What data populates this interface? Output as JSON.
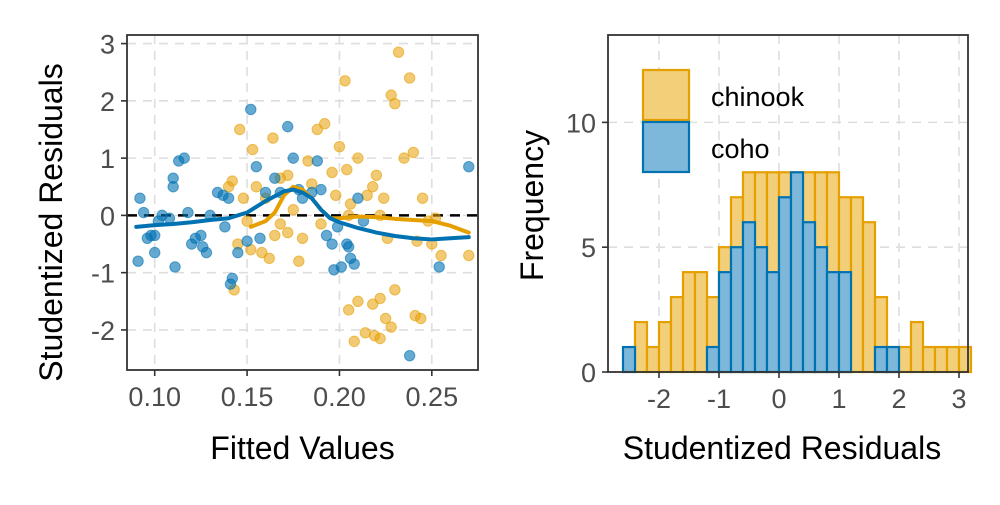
{
  "colors": {
    "chinook": "#E69F00",
    "chinook_fill": "#F3CF7A",
    "coho": "#0072B2",
    "coho_fill": "#7DB8DB",
    "grid": "#dedede",
    "frame": "#333333"
  },
  "chart_data": [
    {
      "type": "scatter",
      "xlabel": "Fitted Values",
      "ylabel": "Studentized Residuals",
      "xlim": [
        0.085,
        0.275
      ],
      "ylim": [
        -2.7,
        3.15
      ],
      "xticks": [
        0.1,
        0.15,
        0.2,
        0.25
      ],
      "xtick_labels": [
        "0.10",
        "0.15",
        "0.20",
        "0.25"
      ],
      "yticks": [
        -2,
        -1,
        0,
        1,
        2,
        3
      ],
      "ytick_labels": [
        "-2",
        "-1",
        "0",
        "1",
        "2",
        "3"
      ],
      "grid": true,
      "reference_line": {
        "y": 0,
        "style": "dashed"
      },
      "series": [
        {
          "name": "chinook",
          "color_key": "chinook",
          "points": [
            [
              0.146,
              1.5
            ],
            [
              0.153,
              1.15
            ],
            [
              0.164,
              1.35
            ],
            [
              0.168,
              0.65
            ],
            [
              0.172,
              0.7
            ],
            [
              0.142,
              0.6
            ],
            [
              0.14,
              0.5
            ],
            [
              0.155,
              0.5
            ],
            [
              0.16,
              0.3
            ],
            [
              0.148,
              0.3
            ],
            [
              0.15,
              -0.1
            ],
            [
              0.145,
              -0.5
            ],
            [
              0.152,
              -0.6
            ],
            [
              0.158,
              -0.65
            ],
            [
              0.165,
              -0.35
            ],
            [
              0.172,
              -0.3
            ],
            [
              0.18,
              -0.4
            ],
            [
              0.19,
              -0.15
            ],
            [
              0.183,
              0.95
            ],
            [
              0.188,
              1.5
            ],
            [
              0.192,
              1.6
            ],
            [
              0.2,
              1.2
            ],
            [
              0.196,
              0.75
            ],
            [
              0.204,
              0.8
            ],
            [
              0.205,
              0.0
            ],
            [
              0.21,
              1.0
            ],
            [
              0.203,
              2.35
            ],
            [
              0.215,
              0.35
            ],
            [
              0.218,
              0.5
            ],
            [
              0.22,
              0.7
            ],
            [
              0.224,
              0.3
            ],
            [
              0.222,
              0.0
            ],
            [
              0.226,
              -0.4
            ],
            [
              0.228,
              2.1
            ],
            [
              0.23,
              1.95
            ],
            [
              0.232,
              2.85
            ],
            [
              0.235,
              1.0
            ],
            [
              0.238,
              2.4
            ],
            [
              0.24,
              1.1
            ],
            [
              0.242,
              -0.45
            ],
            [
              0.245,
              0.3
            ],
            [
              0.248,
              -0.1
            ],
            [
              0.25,
              -0.5
            ],
            [
              0.252,
              -0.05
            ],
            [
              0.222,
              -1.45
            ],
            [
              0.218,
              -1.55
            ],
            [
              0.225,
              -1.8
            ],
            [
              0.214,
              -2.05
            ],
            [
              0.21,
              -1.5
            ],
            [
              0.219,
              -2.1
            ],
            [
              0.205,
              -1.65
            ],
            [
              0.208,
              -2.2
            ],
            [
              0.222,
              -2.15
            ],
            [
              0.23,
              -1.3
            ],
            [
              0.228,
              -1.95
            ],
            [
              0.241,
              -1.75
            ],
            [
              0.244,
              -1.8
            ],
            [
              0.143,
              -1.3
            ],
            [
              0.27,
              -0.7
            ],
            [
              0.255,
              -0.7
            ],
            [
              0.198,
              0.35
            ],
            [
              0.206,
              0.2
            ],
            [
              0.175,
              0.1
            ],
            [
              0.185,
              0.55
            ],
            [
              0.178,
              -0.8
            ],
            [
              0.168,
              -0.15
            ],
            [
              0.162,
              -0.75
            ]
          ]
        },
        {
          "name": "coho",
          "color_key": "coho",
          "points": [
            [
              0.092,
              0.3
            ],
            [
              0.094,
              0.05
            ],
            [
              0.096,
              -0.4
            ],
            [
              0.098,
              -0.35
            ],
            [
              0.1,
              -0.35
            ],
            [
              0.102,
              -0.1
            ],
            [
              0.104,
              0.0
            ],
            [
              0.108,
              -0.05
            ],
            [
              0.11,
              0.5
            ],
            [
              0.11,
              0.65
            ],
            [
              0.113,
              0.95
            ],
            [
              0.116,
              1.0
            ],
            [
              0.118,
              0.05
            ],
            [
              0.12,
              -0.5
            ],
            [
              0.122,
              -0.4
            ],
            [
              0.125,
              -0.35
            ],
            [
              0.126,
              -0.55
            ],
            [
              0.128,
              -0.65
            ],
            [
              0.13,
              0.0
            ],
            [
              0.134,
              0.4
            ],
            [
              0.137,
              0.35
            ],
            [
              0.14,
              0.3
            ],
            [
              0.142,
              -1.1
            ],
            [
              0.141,
              -1.2
            ],
            [
              0.138,
              -0.2
            ],
            [
              0.145,
              -0.65
            ],
            [
              0.15,
              -0.45
            ],
            [
              0.152,
              1.85
            ],
            [
              0.155,
              0.85
            ],
            [
              0.157,
              -0.4
            ],
            [
              0.16,
              0.4
            ],
            [
              0.165,
              0.65
            ],
            [
              0.168,
              0.4
            ],
            [
              0.172,
              1.55
            ],
            [
              0.175,
              1.0
            ],
            [
              0.178,
              0.45
            ],
            [
              0.18,
              0.3
            ],
            [
              0.185,
              0.4
            ],
            [
              0.19,
              0.45
            ],
            [
              0.193,
              -0.35
            ],
            [
              0.196,
              -0.5
            ],
            [
              0.197,
              -0.95
            ],
            [
              0.199,
              -0.2
            ],
            [
              0.201,
              -0.9
            ],
            [
              0.204,
              -0.5
            ],
            [
              0.205,
              -0.55
            ],
            [
              0.208,
              -0.85
            ],
            [
              0.21,
              0.3
            ],
            [
              0.213,
              -0.1
            ],
            [
              0.238,
              -2.45
            ],
            [
              0.254,
              -0.9
            ],
            [
              0.27,
              0.85
            ],
            [
              0.1,
              -0.65
            ],
            [
              0.091,
              -0.8
            ],
            [
              0.111,
              -0.9
            ],
            [
              0.188,
              0.95
            ],
            [
              0.206,
              -0.75
            ]
          ]
        }
      ],
      "smooth_lines": [
        {
          "name": "chinook",
          "color_key": "chinook",
          "points": [
            [
              0.152,
              -0.2
            ],
            [
              0.16,
              -0.1
            ],
            [
              0.165,
              0.05
            ],
            [
              0.17,
              0.35
            ],
            [
              0.175,
              0.5
            ],
            [
              0.18,
              0.45
            ],
            [
              0.185,
              0.3
            ],
            [
              0.19,
              0.1
            ],
            [
              0.195,
              -0.05
            ],
            [
              0.2,
              -0.05
            ],
            [
              0.21,
              -0.02
            ],
            [
              0.22,
              -0.03
            ],
            [
              0.23,
              -0.06
            ],
            [
              0.24,
              -0.08
            ],
            [
              0.25,
              -0.1
            ],
            [
              0.26,
              -0.18
            ],
            [
              0.27,
              -0.3
            ]
          ]
        },
        {
          "name": "coho",
          "color_key": "coho",
          "points": [
            [
              0.09,
              -0.2
            ],
            [
              0.1,
              -0.17
            ],
            [
              0.11,
              -0.15
            ],
            [
              0.12,
              -0.12
            ],
            [
              0.13,
              -0.08
            ],
            [
              0.14,
              -0.05
            ],
            [
              0.15,
              0.05
            ],
            [
              0.16,
              0.25
            ],
            [
              0.17,
              0.42
            ],
            [
              0.175,
              0.45
            ],
            [
              0.18,
              0.4
            ],
            [
              0.185,
              0.3
            ],
            [
              0.19,
              0.1
            ],
            [
              0.195,
              -0.05
            ],
            [
              0.2,
              -0.12
            ],
            [
              0.21,
              -0.22
            ],
            [
              0.22,
              -0.3
            ],
            [
              0.23,
              -0.36
            ],
            [
              0.24,
              -0.4
            ],
            [
              0.25,
              -0.42
            ],
            [
              0.26,
              -0.4
            ],
            [
              0.27,
              -0.38
            ]
          ]
        }
      ]
    },
    {
      "type": "histogram",
      "xlabel": "Studentized Residuals",
      "ylabel": "Frequency",
      "xlim": [
        -2.85,
        3.15
      ],
      "ylim": [
        0,
        13.5
      ],
      "xticks": [
        -2,
        -1,
        0,
        1,
        2,
        3
      ],
      "xtick_labels": [
        "-2",
        "-1",
        "0",
        "1",
        "2",
        "3"
      ],
      "yticks": [
        0,
        5,
        10
      ],
      "ytick_labels": [
        "0",
        "5",
        "10"
      ],
      "grid": true,
      "legend": {
        "position": "top-left"
      },
      "bin_width": 0.2,
      "bin_start": -2.6,
      "series": [
        {
          "name": "chinook",
          "color_key": "chinook",
          "fill_key": "chinook_fill",
          "values": [
            0,
            2,
            1,
            2,
            3,
            4,
            4,
            3,
            5,
            7,
            8,
            8,
            8,
            8,
            8,
            8,
            8,
            8,
            7,
            7,
            6,
            3,
            1,
            1,
            2,
            1,
            1,
            1,
            1
          ]
        },
        {
          "name": "coho",
          "color_key": "coho",
          "fill_key": "coho_fill",
          "values": [
            1,
            0,
            0,
            0,
            0,
            0,
            0,
            1,
            4,
            5,
            6,
            5,
            4,
            7,
            8,
            6,
            5,
            4,
            4,
            0,
            0,
            1,
            1,
            0,
            0,
            0,
            0,
            0,
            0
          ]
        }
      ]
    }
  ]
}
